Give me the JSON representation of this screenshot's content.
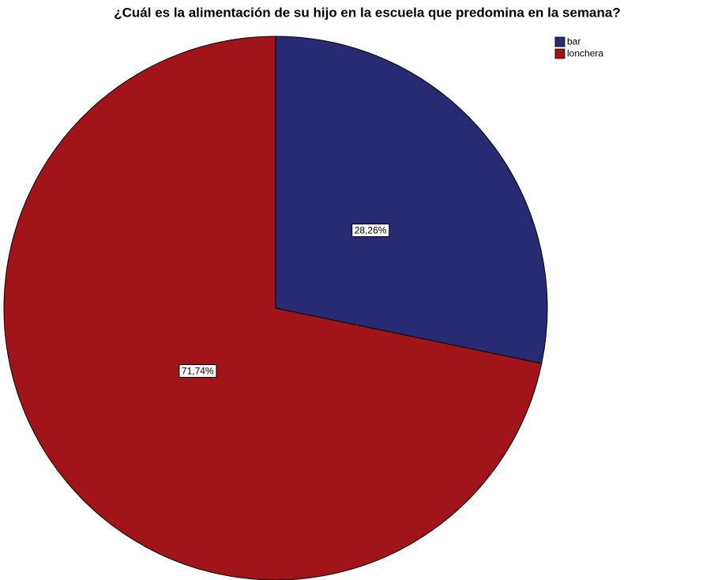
{
  "chart_data": {
    "type": "pie",
    "title": "¿Cuál es la alimentación de su hijo en la escuela que predomina en la semana?",
    "categories": [
      "bar",
      "lonchera"
    ],
    "values": [
      28.26,
      71.74
    ],
    "value_labels": [
      "28,26%",
      "71,74%"
    ],
    "colors": [
      "#282a73",
      "#a0141a"
    ],
    "legend": "top-right"
  }
}
